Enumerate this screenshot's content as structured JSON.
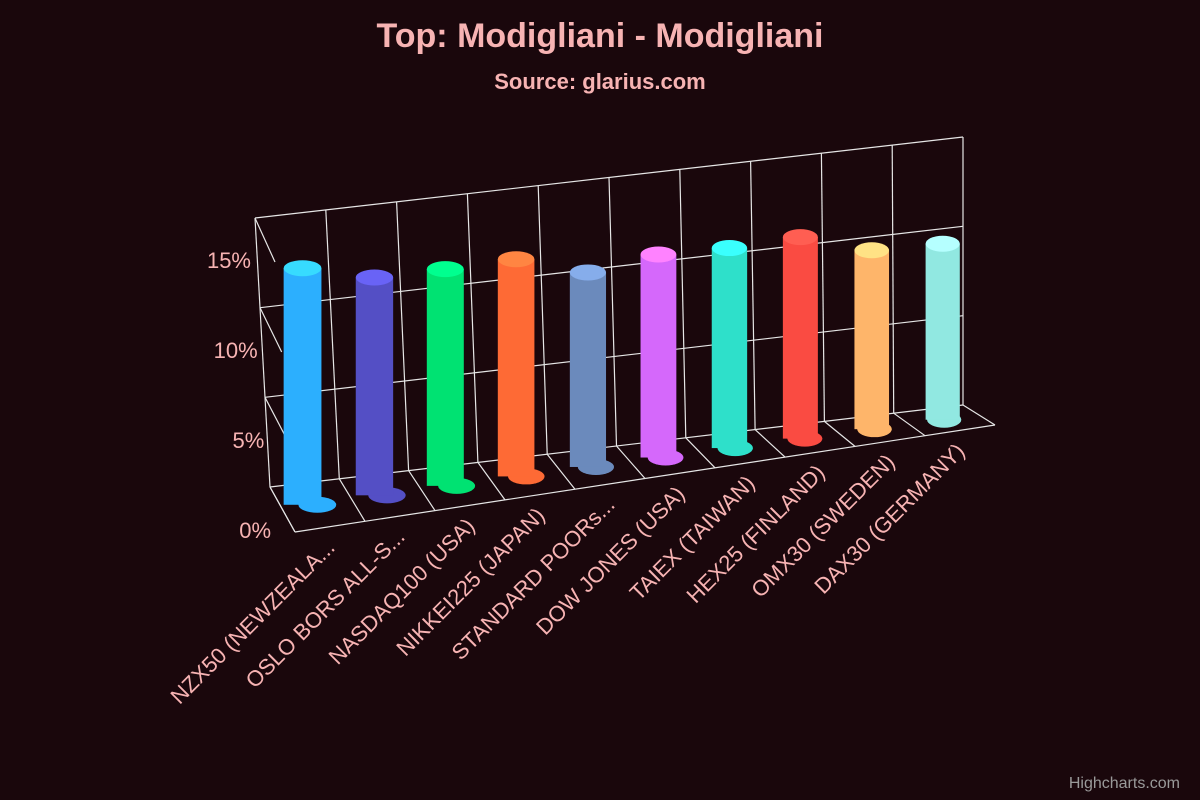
{
  "chart_data": {
    "type": "cylinder",
    "title": "Top: Modigliani - Modigliani",
    "subtitle": "Source: glarius.com",
    "credits": "Highcharts.com",
    "categories": [
      "NZX50 (NEWZEALA...",
      "OSLO BORS ALL-S...",
      "NASDAQ100 (USA)",
      "NIKKEI225 (JAPAN)",
      "STANDARD POORs...",
      "DOW JONES (USA)",
      "TAIEX (TAIWAN)",
      "HEX25 (FINLAND)",
      "OMX30 (SWEDEN)",
      "DAX30 (GERMANY)"
    ],
    "values": [
      13.3,
      12.5,
      12.7,
      13.0,
      11.9,
      12.7,
      12.8,
      13.2,
      12.0,
      12.1
    ],
    "colors": [
      "#2caffe",
      "#544fc5",
      "#00e272",
      "#fe6a35",
      "#6b8abc",
      "#d568fb",
      "#2ee0ca",
      "#fa4b42",
      "#feb56a",
      "#91e8e1"
    ],
    "ylim": [
      0,
      15
    ],
    "yticks": [
      {
        "value": 0,
        "label": "0%"
      },
      {
        "value": 5,
        "label": "5%"
      },
      {
        "value": 10,
        "label": "10%"
      },
      {
        "value": 15,
        "label": "15%"
      }
    ],
    "grid": true
  }
}
